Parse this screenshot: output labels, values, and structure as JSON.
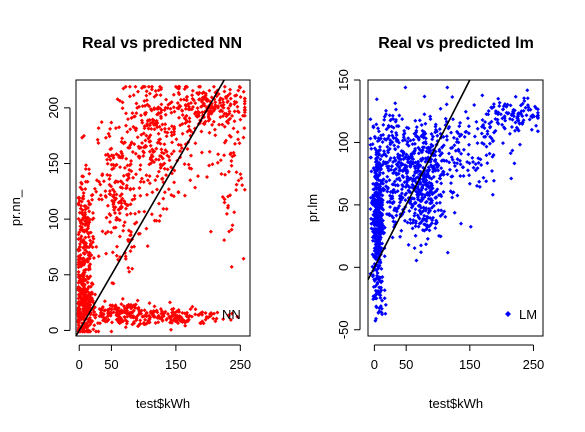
{
  "chart_data": [
    {
      "type": "scatter",
      "title": "Real vs predicted NN",
      "xlabel": "test$kWh",
      "ylabel": "pr.nn_",
      "xlim": [
        -5,
        265
      ],
      "ylim": [
        -5,
        225
      ],
      "xticks": [
        0,
        50,
        150,
        250
      ],
      "xtick_labels": [
        "0",
        "50",
        "150",
        "250"
      ],
      "yticks": [
        0,
        50,
        100,
        150,
        200
      ],
      "ytick_labels": [
        "0",
        "50",
        "100",
        "150",
        "200"
      ],
      "point_color": "#ff0000",
      "legend": {
        "label": "NN",
        "position": "bottom-right",
        "color": "#ff0000"
      },
      "reference_line": {
        "slope": 1,
        "intercept": 0,
        "color": "#000000"
      },
      "grid": false,
      "clusters": [
        {
          "x_mean": 8,
          "x_sd": 8,
          "y_mean": 20,
          "y_sd": 15,
          "n": 220
        },
        {
          "x_mean": 8,
          "x_sd": 8,
          "y_mean": 75,
          "y_sd": 30,
          "n": 220
        },
        {
          "x_mean": 70,
          "x_sd": 35,
          "y_mean": 15,
          "y_sd": 5,
          "n": 200
        },
        {
          "x_mean": 150,
          "x_sd": 40,
          "y_mean": 12,
          "y_sd": 4,
          "n": 120
        },
        {
          "x_mean": 60,
          "x_sd": 15,
          "y_mean": 120,
          "y_sd": 35,
          "n": 180
        },
        {
          "x_mean": 120,
          "x_sd": 30,
          "y_mean": 170,
          "y_sd": 30,
          "n": 300
        },
        {
          "x_mean": 200,
          "x_sd": 30,
          "y_mean": 200,
          "y_sd": 10,
          "n": 200
        },
        {
          "x_mean": 235,
          "x_sd": 12,
          "y_mean": 150,
          "y_sd": 40,
          "n": 60
        }
      ]
    },
    {
      "type": "scatter",
      "title": "Real vs predicted lm",
      "xlabel": "test$kWh",
      "ylabel": "pr.lm",
      "xlim": [
        -10,
        265
      ],
      "ylim": [
        -55,
        150
      ],
      "xticks": [
        0,
        50,
        150,
        250
      ],
      "xtick_labels": [
        "0",
        "50",
        "150",
        "250"
      ],
      "yticks": [
        -50,
        0,
        50,
        100,
        150
      ],
      "ytick_labels": [
        "-50",
        "0",
        "50",
        "100",
        "150"
      ],
      "point_color": "#0000ff",
      "legend": {
        "label": "LM",
        "position": "bottom-right",
        "color": "#0000ff"
      },
      "reference_line": {
        "slope": 1,
        "intercept": 0,
        "color": "#000000"
      },
      "grid": false,
      "clusters": [
        {
          "x_mean": 5,
          "x_sd": 4,
          "y_mean": 40,
          "y_sd": 30,
          "n": 400
        },
        {
          "x_mean": 25,
          "x_sd": 15,
          "y_mean": 80,
          "y_sd": 25,
          "n": 200
        },
        {
          "x_mean": 70,
          "x_sd": 20,
          "y_mean": 50,
          "y_sd": 15,
          "n": 200
        },
        {
          "x_mean": 75,
          "x_sd": 20,
          "y_mean": 85,
          "y_sd": 15,
          "n": 250
        },
        {
          "x_mean": 130,
          "x_sd": 35,
          "y_mean": 95,
          "y_sd": 20,
          "n": 150
        },
        {
          "x_mean": 220,
          "x_sd": 25,
          "y_mean": 120,
          "y_sd": 8,
          "n": 120
        },
        {
          "x_mean": 10,
          "x_sd": 5,
          "y_mean": -25,
          "y_sd": 10,
          "n": 30
        }
      ]
    }
  ]
}
